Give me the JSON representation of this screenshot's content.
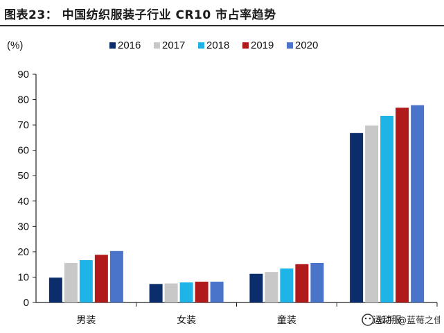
{
  "title": "图表23：   中国纺织服装子行业 CR10 市占率趋势",
  "watermark_text": "知乎 @蓝莓之佳",
  "colors": {
    "2016": "#0c2d6b",
    "2017": "#c8c8c8",
    "2018": "#1fb4e8",
    "2019": "#b01a1a",
    "2020": "#4a74c9"
  },
  "chart_data": {
    "type": "bar",
    "title": "中国纺织服装子行业 CR10 市占率趋势",
    "ylabel": "(%)",
    "xlabel": "",
    "ylim": [
      0,
      90
    ],
    "yticks": [
      0,
      10,
      20,
      30,
      40,
      50,
      60,
      70,
      80,
      90
    ],
    "grid": false,
    "legend_position": "top",
    "categories": [
      "男装",
      "女装",
      "童装",
      "运动服"
    ],
    "series": [
      {
        "name": "2016",
        "values": [
          9.8,
          7.3,
          11.3,
          66.8
        ]
      },
      {
        "name": "2017",
        "values": [
          15.6,
          7.5,
          12.0,
          69.8
        ]
      },
      {
        "name": "2018",
        "values": [
          16.7,
          7.9,
          13.4,
          73.6
        ]
      },
      {
        "name": "2019",
        "values": [
          18.8,
          8.2,
          15.1,
          76.8
        ]
      },
      {
        "name": "2020",
        "values": [
          20.3,
          8.2,
          15.6,
          77.8
        ]
      }
    ]
  }
}
